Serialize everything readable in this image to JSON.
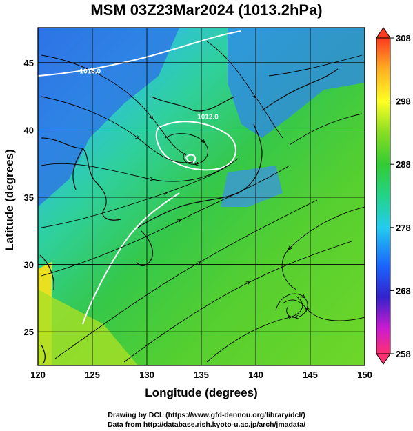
{
  "title": "MSM 03Z23Mar2024 (1013.2hPa)",
  "x_axis_title": "Longitude (degrees)",
  "y_axis_title": "Latitude  (degrees)",
  "x_ticks": [
    {
      "value": 120,
      "label": "120"
    },
    {
      "value": 125,
      "label": "125"
    },
    {
      "value": 130,
      "label": "130"
    },
    {
      "value": 135,
      "label": "135"
    },
    {
      "value": 140,
      "label": "140"
    },
    {
      "value": 145,
      "label": "145"
    },
    {
      "value": 150,
      "label": "150"
    }
  ],
  "y_ticks": [
    {
      "value": 25,
      "label": "25"
    },
    {
      "value": 30,
      "label": "30"
    },
    {
      "value": 35,
      "label": "35"
    },
    {
      "value": 40,
      "label": "40"
    },
    {
      "value": 45,
      "label": "45"
    }
  ],
  "map_extent": {
    "lon": [
      120,
      150
    ],
    "lat": [
      22.5,
      47.6
    ]
  },
  "colorbar": {
    "ticks": [
      {
        "value": 308,
        "label": "308"
      },
      {
        "value": 298,
        "label": "298"
      },
      {
        "value": 288,
        "label": "288"
      },
      {
        "value": 278,
        "label": "278"
      },
      {
        "value": 268,
        "label": "268"
      },
      {
        "value": 258,
        "label": "258"
      }
    ],
    "range": [
      258,
      308
    ],
    "gradient": [
      "#ff3070",
      "#cc1ad0",
      "#3322cc",
      "#1a66ff",
      "#22ccee",
      "#22d488",
      "#33cc33",
      "#88dd22",
      "#ffff22",
      "#ffb020",
      "#ff3a20"
    ]
  },
  "isobar_labels": [
    {
      "text": "1016.0",
      "lon": 124.8,
      "lat": 44.2
    },
    {
      "text": "1012.0",
      "lon": 135.6,
      "lat": 40.8
    }
  ],
  "credits": {
    "line1": "Drawing by DCL (https://www.gfd-dennou.org/library/dcl/)",
    "line2": "Data from http://database.rish.kyoto-u.ac.jp/arch/jmadata/"
  }
}
